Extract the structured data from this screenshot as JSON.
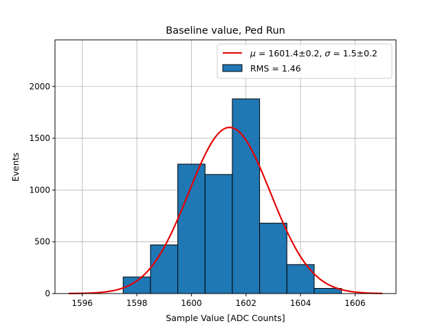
{
  "chart_data": {
    "type": "bar",
    "title": "Baseline value, Ped Run",
    "xlabel": "Sample Value [ADC Counts]",
    "ylabel": "Events",
    "xlim": [
      1595.0,
      1607.5
    ],
    "ylim": [
      0,
      2450
    ],
    "grid": true,
    "legend_position": "top-right",
    "x_ticks": [
      1596,
      1598,
      1600,
      1602,
      1604,
      1606
    ],
    "y_ticks": [
      0,
      500,
      1000,
      1500,
      2000
    ],
    "histogram": {
      "name": "RMS = 1.46",
      "bin_edges": [
        1597.5,
        1598.5,
        1599.5,
        1600.5,
        1601.5,
        1602.5,
        1603.5,
        1604.5,
        1605.5
      ],
      "counts": [
        160,
        470,
        1250,
        1150,
        1880,
        680,
        280,
        50
      ],
      "color": "#1f77b4"
    },
    "fit": {
      "name_mu": "1601.4±0.2",
      "name_sigma": "1.5±0.2",
      "type": "gaussian",
      "mu": 1601.4,
      "sigma": 1.5,
      "amplitude": 1605,
      "x_range": [
        1595.5,
        1607.0
      ],
      "color": "#e60000"
    },
    "legend": {
      "fit_label_mu": "μ",
      "fit_label_mid": " = 1601.4±0.2, ",
      "fit_label_sigma": "σ",
      "fit_label_end": " = 1.5±0.2",
      "hist_label": "RMS = 1.46"
    }
  }
}
